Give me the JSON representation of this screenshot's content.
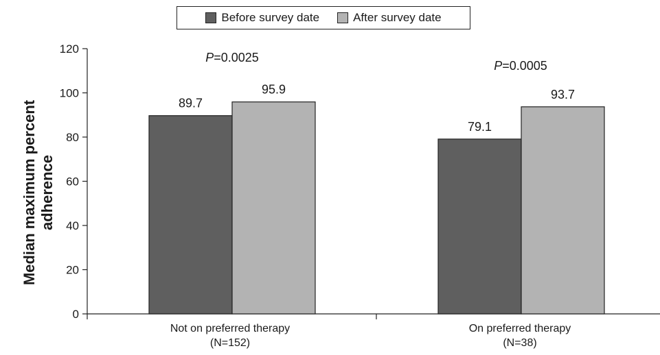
{
  "chart_data": {
    "type": "bar",
    "title": "",
    "ylabel": "Median maximum percent adherence",
    "ylabel_lines": [
      "Median maximum percent",
      "adherence"
    ],
    "ylim": [
      0,
      120
    ],
    "yticks": [
      0,
      20,
      40,
      60,
      80,
      100,
      120
    ],
    "grid": false,
    "legend_position": "top-center",
    "categories": [
      "Not on preferred therapy (N=152)",
      "On preferred therapy (N=38)"
    ],
    "category_lines": [
      [
        "Not on preferred therapy",
        "(N=152)"
      ],
      [
        "On preferred therapy",
        "(N=38)"
      ]
    ],
    "series": [
      {
        "name": "Before survey date",
        "values": [
          89.7,
          79.1
        ],
        "color": "#5f5f5f"
      },
      {
        "name": "After survey date",
        "values": [
          95.9,
          93.7
        ],
        "color": "#b3b3b3"
      }
    ],
    "annotations": [
      {
        "prefix": "P",
        "text": "=0.0025"
      },
      {
        "prefix": "P",
        "text": "=0.0005"
      }
    ]
  }
}
